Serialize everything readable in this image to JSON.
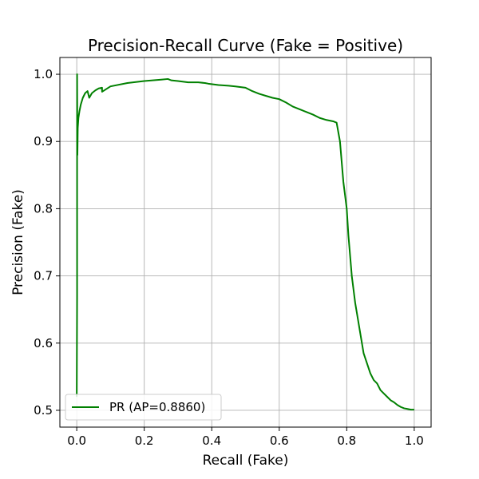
{
  "chart_data": {
    "type": "line",
    "title": "Precision-Recall Curve (Fake = Positive)",
    "xlabel": "Recall (Fake)",
    "ylabel": "Precision (Fake)",
    "xlim": [
      -0.05,
      1.05
    ],
    "ylim": [
      0.475,
      1.025
    ],
    "xticks": [
      0.0,
      0.2,
      0.4,
      0.6,
      0.8,
      1.0
    ],
    "xtick_labels": [
      "0.0",
      "0.2",
      "0.4",
      "0.6",
      "0.8",
      "1.0"
    ],
    "yticks": [
      0.5,
      0.6,
      0.7,
      0.8,
      0.9,
      1.0
    ],
    "ytick_labels": [
      "0.5",
      "0.6",
      "0.7",
      "0.8",
      "0.9",
      "1.0"
    ],
    "grid": true,
    "legend_position": "lower-left",
    "series": [
      {
        "name": "PR (AP=0.8860)",
        "color": "#008000",
        "x": [
          0.0,
          0.001,
          0.001,
          0.002,
          0.003,
          0.005,
          0.008,
          0.012,
          0.018,
          0.025,
          0.032,
          0.037,
          0.037,
          0.045,
          0.055,
          0.065,
          0.075,
          0.075,
          0.1,
          0.15,
          0.2,
          0.25,
          0.27,
          0.28,
          0.3,
          0.33,
          0.36,
          0.38,
          0.39,
          0.42,
          0.45,
          0.47,
          0.5,
          0.52,
          0.54,
          0.56,
          0.58,
          0.6,
          0.62,
          0.64,
          0.66,
          0.68,
          0.7,
          0.72,
          0.74,
          0.76,
          0.77,
          0.78,
          0.785,
          0.79,
          0.8,
          0.805,
          0.81,
          0.815,
          0.82,
          0.825,
          0.83,
          0.835,
          0.84,
          0.845,
          0.85,
          0.86,
          0.87,
          0.88,
          0.89,
          0.9,
          0.91,
          0.92,
          0.93,
          0.94,
          0.95,
          0.96,
          0.97,
          0.98,
          0.99,
          1.0
        ],
        "y": [
          0.52,
          0.67,
          1.0,
          0.88,
          0.92,
          0.935,
          0.945,
          0.955,
          0.965,
          0.972,
          0.975,
          0.965,
          0.965,
          0.972,
          0.976,
          0.979,
          0.98,
          0.974,
          0.982,
          0.987,
          0.99,
          0.992,
          0.993,
          0.991,
          0.99,
          0.988,
          0.988,
          0.987,
          0.986,
          0.984,
          0.983,
          0.982,
          0.98,
          0.975,
          0.971,
          0.968,
          0.965,
          0.963,
          0.958,
          0.952,
          0.948,
          0.944,
          0.94,
          0.935,
          0.932,
          0.93,
          0.928,
          0.9,
          0.87,
          0.84,
          0.8,
          0.76,
          0.73,
          0.7,
          0.68,
          0.66,
          0.645,
          0.63,
          0.615,
          0.6,
          0.585,
          0.57,
          0.555,
          0.545,
          0.54,
          0.53,
          0.525,
          0.52,
          0.515,
          0.512,
          0.508,
          0.505,
          0.503,
          0.502,
          0.501,
          0.501
        ]
      }
    ]
  }
}
